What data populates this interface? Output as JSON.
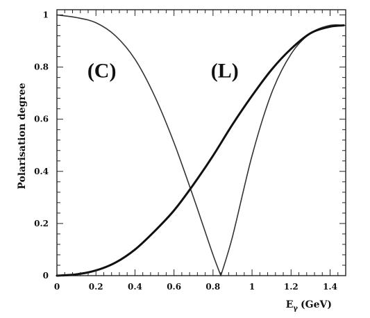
{
  "chart_data": {
    "type": "line",
    "title": "",
    "xlabel": "E",
    "xlabel_sub": "γ",
    "xlabel_unit": "(GeV)",
    "ylabel": "Polarisation degree",
    "xlim": [
      0,
      1.48
    ],
    "ylim": [
      0,
      1.02
    ],
    "grid": false,
    "xticks": [
      {
        "v": 0,
        "label": "0"
      },
      {
        "v": 0.2,
        "label": "0.2"
      },
      {
        "v": 0.4,
        "label": "0.4"
      },
      {
        "v": 0.6,
        "label": "0.6"
      },
      {
        "v": 0.8,
        "label": "0.8"
      },
      {
        "v": 1.0,
        "label": "1"
      },
      {
        "v": 1.2,
        "label": "1.2"
      },
      {
        "v": 1.4,
        "label": "1.4"
      }
    ],
    "yticks": [
      {
        "v": 0,
        "label": "0"
      },
      {
        "v": 0.2,
        "label": "0.2"
      },
      {
        "v": 0.4,
        "label": "0.4"
      },
      {
        "v": 0.6,
        "label": "0.6"
      },
      {
        "v": 0.8,
        "label": "0.8"
      },
      {
        "v": 1.0,
        "label": "1"
      }
    ],
    "annotations": [
      {
        "text": "(C)",
        "x": 0.23,
        "y": 0.76
      },
      {
        "text": "(L)",
        "x": 0.86,
        "y": 0.76
      }
    ],
    "series": [
      {
        "stroke": "#333333",
        "width": 1.6,
        "x": [
          0,
          0.1,
          0.2,
          0.3,
          0.4,
          0.5,
          0.6,
          0.7,
          0.75,
          0.8,
          0.84,
          0.9,
          1.0,
          1.1,
          1.2,
          1.3,
          1.4,
          1.47
        ],
        "y": [
          1.0,
          0.99,
          0.97,
          0.92,
          0.83,
          0.69,
          0.51,
          0.3,
          0.19,
          0.08,
          0.0,
          0.15,
          0.46,
          0.7,
          0.85,
          0.93,
          0.96,
          0.96
        ]
      },
      {
        "stroke": "#111111",
        "width": 3.0,
        "x": [
          0,
          0.1,
          0.2,
          0.3,
          0.4,
          0.5,
          0.6,
          0.7,
          0.8,
          0.9,
          1.0,
          1.1,
          1.2,
          1.3,
          1.4,
          1.47
        ],
        "y": [
          0.0,
          0.005,
          0.02,
          0.05,
          0.1,
          0.17,
          0.25,
          0.35,
          0.46,
          0.58,
          0.69,
          0.79,
          0.87,
          0.93,
          0.955,
          0.96
        ]
      }
    ]
  }
}
